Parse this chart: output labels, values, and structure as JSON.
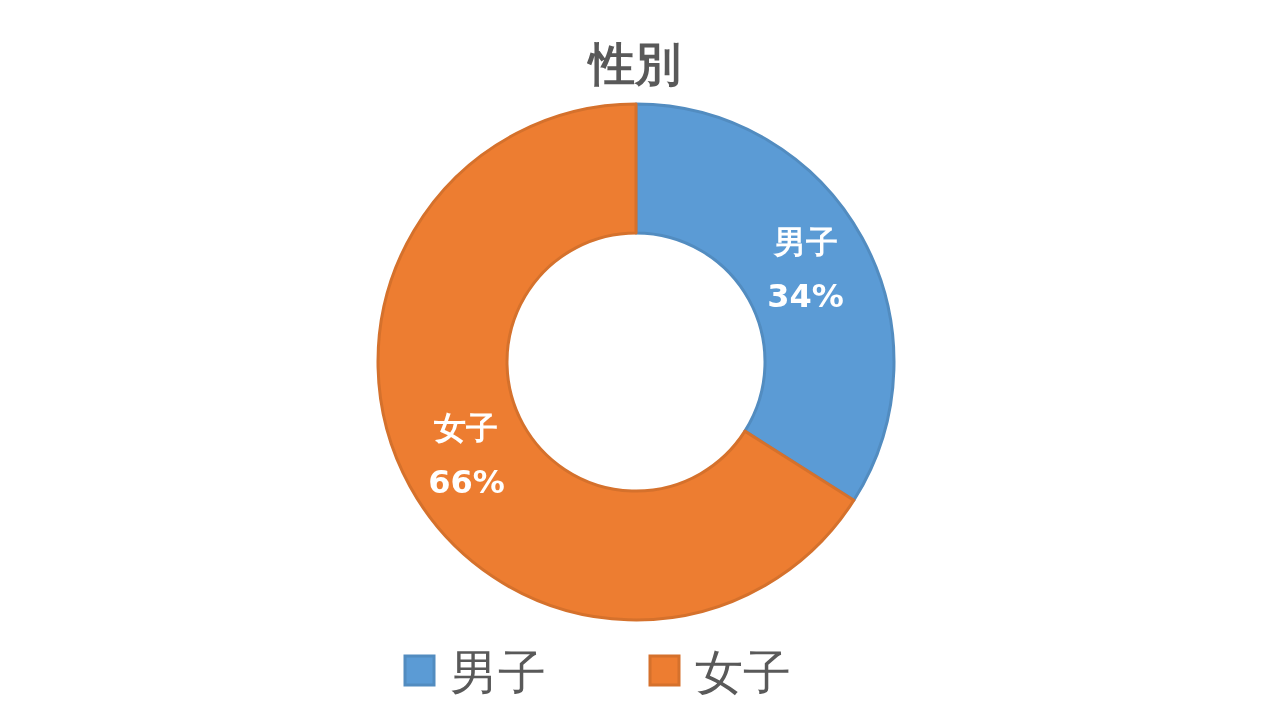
{
  "chart_data": {
    "type": "donut",
    "title": "性別",
    "categories": [
      "男子",
      "女子"
    ],
    "values": [
      34,
      66
    ],
    "value_labels": [
      "34%",
      "66%"
    ],
    "colors": [
      "#5b9bd5",
      "#ed7d31"
    ],
    "legend": "bottom"
  }
}
